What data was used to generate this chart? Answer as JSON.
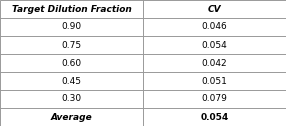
{
  "col1_header": "Target Dilution Fraction",
  "col2_header": "CV",
  "rows": [
    [
      "0.90",
      "0.046"
    ],
    [
      "0.75",
      "0.054"
    ],
    [
      "0.60",
      "0.042"
    ],
    [
      "0.45",
      "0.051"
    ],
    [
      "0.30",
      "0.079"
    ]
  ],
  "avg_label": "Average",
  "avg_value": "0.054",
  "bg_color": "#ffffff",
  "border_color": "#999999",
  "text_color": "#000000",
  "header_fontsize": 6.5,
  "data_fontsize": 6.5,
  "col_split": 0.5,
  "fig_width": 2.86,
  "fig_height": 1.26,
  "dpi": 100
}
